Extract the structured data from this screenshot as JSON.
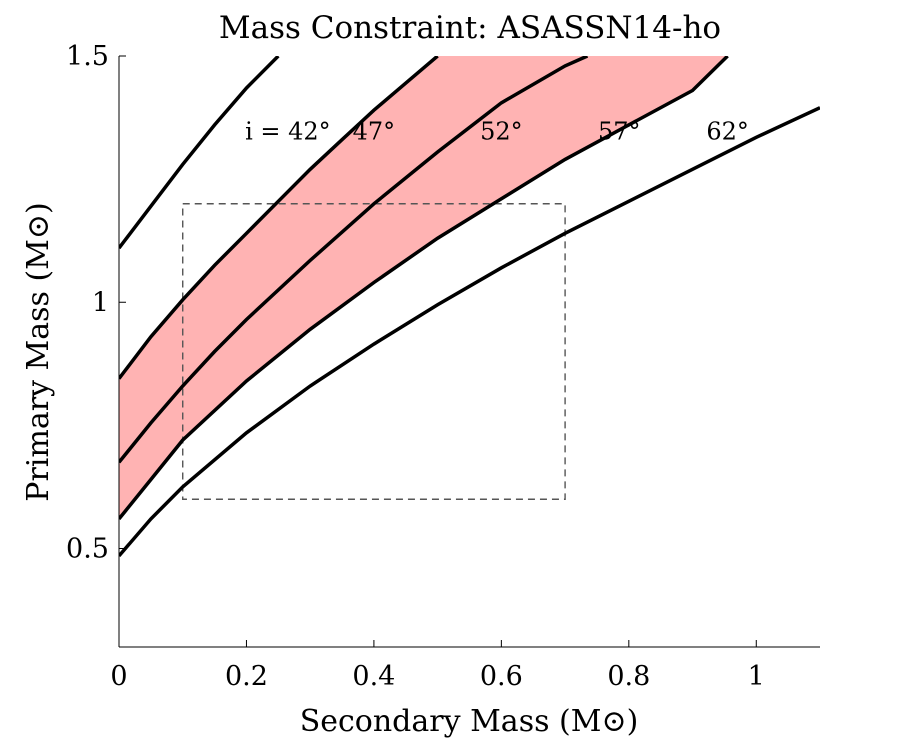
{
  "chart_data": {
    "type": "line",
    "title": "Mass Constraint: ASASSN14-ho",
    "xlabel": "Secondary Mass (M⊙)",
    "ylabel": "Primary Mass (M⊙)",
    "xlim": [
      0,
      1.1
    ],
    "ylim": [
      0.3,
      1.5
    ],
    "xticks": [
      {
        "value": 0,
        "label": "0"
      },
      {
        "value": 0.2,
        "label": "0.2"
      },
      {
        "value": 0.4,
        "label": "0.4"
      },
      {
        "value": 0.6,
        "label": "0.6"
      },
      {
        "value": 0.8,
        "label": "0.8"
      },
      {
        "value": 1.0,
        "label": "1"
      }
    ],
    "yticks": [
      {
        "value": 0.5,
        "label": "0.5"
      },
      {
        "value": 1.0,
        "label": "1"
      },
      {
        "value": 1.5,
        "label": "1.5"
      }
    ],
    "series": [
      {
        "name": "i = 42°",
        "x": [
          0,
          0.05,
          0.1,
          0.15,
          0.2,
          0.25
        ],
        "y": [
          1.11,
          1.195,
          1.28,
          1.36,
          1.435,
          1.5
        ]
      },
      {
        "name": "47°",
        "x": [
          0,
          0.05,
          0.1,
          0.15,
          0.2,
          0.25,
          0.3,
          0.35,
          0.4,
          0.45,
          0.5
        ],
        "y": [
          0.845,
          0.93,
          1.005,
          1.075,
          1.14,
          1.205,
          1.27,
          1.33,
          1.39,
          1.445,
          1.5
        ]
      },
      {
        "name": "52°",
        "x": [
          0,
          0.05,
          0.1,
          0.15,
          0.2,
          0.3,
          0.4,
          0.5,
          0.6,
          0.7,
          0.735
        ],
        "y": [
          0.675,
          0.755,
          0.83,
          0.9,
          0.965,
          1.085,
          1.2,
          1.305,
          1.405,
          1.48,
          1.5
        ]
      },
      {
        "name": "57°",
        "x": [
          0,
          0.05,
          0.1,
          0.2,
          0.3,
          0.4,
          0.5,
          0.6,
          0.7,
          0.8,
          0.9,
          0.955
        ],
        "y": [
          0.56,
          0.64,
          0.72,
          0.84,
          0.945,
          1.04,
          1.13,
          1.21,
          1.29,
          1.36,
          1.43,
          1.5
        ]
      },
      {
        "name": "62°",
        "x": [
          0,
          0.05,
          0.1,
          0.2,
          0.3,
          0.4,
          0.5,
          0.6,
          0.7,
          0.8,
          0.9,
          1.0,
          1.1
        ],
        "y": [
          0.485,
          0.56,
          0.625,
          0.735,
          0.83,
          0.915,
          0.995,
          1.07,
          1.14,
          1.205,
          1.27,
          1.335,
          1.395
        ]
      }
    ],
    "shaded_region": {
      "between": [
        "47°",
        "57°"
      ],
      "color": "#ffb3b3"
    },
    "curve_labels": [
      {
        "text": "i = 42°",
        "x": 0.265,
        "y": 1.33
      },
      {
        "text": "47°",
        "x": 0.4,
        "y": 1.33
      },
      {
        "text": "52°",
        "x": 0.6,
        "y": 1.33
      },
      {
        "text": "57°",
        "x": 0.785,
        "y": 1.33
      },
      {
        "text": "62°",
        "x": 0.955,
        "y": 1.33
      }
    ],
    "constraint_box": {
      "x": [
        0.1,
        0.7
      ],
      "y": [
        0.6,
        1.2
      ]
    },
    "grid": false,
    "legend": "none"
  }
}
